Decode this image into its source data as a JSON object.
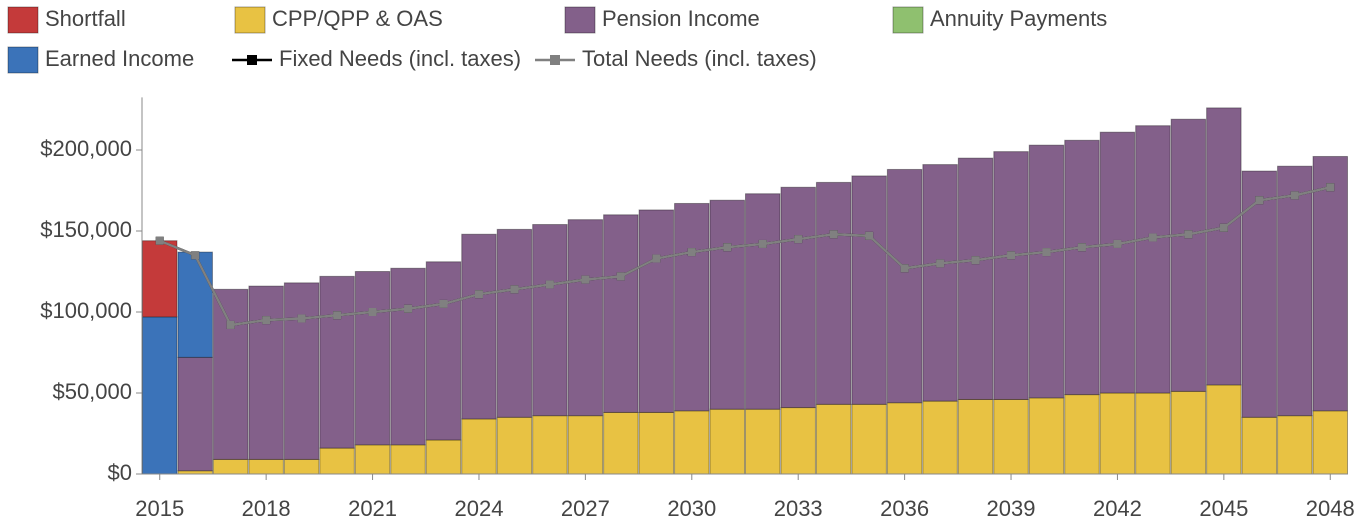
{
  "chart_data": {
    "type": "bar",
    "stacked": true,
    "x": [
      2015,
      2016,
      2017,
      2018,
      2019,
      2020,
      2021,
      2022,
      2023,
      2024,
      2025,
      2026,
      2027,
      2028,
      2029,
      2030,
      2031,
      2032,
      2033,
      2034,
      2035,
      2036,
      2037,
      2038,
      2039,
      2040,
      2041,
      2042,
      2043,
      2044,
      2045,
      2046,
      2047,
      2048
    ],
    "xlim": [
      2014.5,
      2048.5
    ],
    "xticks": [
      2015,
      2018,
      2021,
      2024,
      2027,
      2030,
      2033,
      2036,
      2039,
      2042,
      2045,
      2048
    ],
    "ylim": [
      0,
      230000
    ],
    "yticks": [
      {
        "value": 0,
        "label": "$0"
      },
      {
        "value": 50000,
        "label": "$50,000"
      },
      {
        "value": 100000,
        "label": "$100,000"
      },
      {
        "value": 150000,
        "label": "$150,000"
      },
      {
        "value": 200000,
        "label": "$200,000"
      }
    ],
    "grid": false,
    "series": [
      {
        "name": "CPP/QPP & OAS",
        "color": "#e8c243",
        "values": [
          0,
          2000,
          9000,
          9000,
          9000,
          16000,
          18000,
          18000,
          21000,
          34000,
          35000,
          36000,
          36000,
          38000,
          38000,
          39000,
          40000,
          40000,
          41000,
          43000,
          43000,
          44000,
          45000,
          46000,
          46000,
          47000,
          49000,
          50000,
          50000,
          51000,
          55000,
          35000,
          36000,
          39000
        ]
      },
      {
        "name": "Pension Income",
        "color": "#83608a",
        "values": [
          0,
          70000,
          105000,
          107000,
          109000,
          106000,
          107000,
          109000,
          110000,
          114000,
          116000,
          118000,
          121000,
          122000,
          125000,
          128000,
          129000,
          133000,
          136000,
          137000,
          141000,
          144000,
          146000,
          149000,
          153000,
          156000,
          157000,
          161000,
          165000,
          168000,
          171000,
          152000,
          154000,
          157000
        ]
      },
      {
        "name": "Annuity Payments",
        "color": "#8fc06f",
        "values": [
          0,
          0,
          0,
          0,
          0,
          0,
          0,
          0,
          0,
          0,
          0,
          0,
          0,
          0,
          0,
          0,
          0,
          0,
          0,
          0,
          0,
          0,
          0,
          0,
          0,
          0,
          0,
          0,
          0,
          0,
          0,
          0,
          0,
          0
        ]
      },
      {
        "name": "Earned Income",
        "color": "#3b73b9",
        "values": [
          97000,
          65000,
          0,
          0,
          0,
          0,
          0,
          0,
          0,
          0,
          0,
          0,
          0,
          0,
          0,
          0,
          0,
          0,
          0,
          0,
          0,
          0,
          0,
          0,
          0,
          0,
          0,
          0,
          0,
          0,
          0,
          0,
          0,
          0
        ]
      },
      {
        "name": "Shortfall",
        "color": "#c43a3a",
        "values": [
          47000,
          0,
          0,
          0,
          0,
          0,
          0,
          0,
          0,
          0,
          0,
          0,
          0,
          0,
          0,
          0,
          0,
          0,
          0,
          0,
          0,
          0,
          0,
          0,
          0,
          0,
          0,
          0,
          0,
          0,
          0,
          0,
          0,
          0
        ]
      },
      {
        "name": "Fixed Needs (incl. taxes)",
        "type": "line",
        "color": "#000000",
        "values": [
          144000,
          135000,
          92000,
          95000,
          96000,
          98000,
          100000,
          102000,
          105000,
          111000,
          114000,
          117000,
          120000,
          122000,
          133000,
          137000,
          140000,
          142000,
          145000,
          148000,
          147000,
          127000,
          130000,
          132000,
          135000,
          137000,
          140000,
          142000,
          146000,
          148000,
          152000,
          169000,
          172000,
          177000
        ]
      },
      {
        "name": "Total Needs (incl. taxes)",
        "type": "line",
        "color": "#808080",
        "values": [
          144000,
          135000,
          92000,
          95000,
          96000,
          98000,
          100000,
          102000,
          105000,
          111000,
          114000,
          117000,
          120000,
          122000,
          133000,
          137000,
          140000,
          142000,
          145000,
          148000,
          147000,
          127000,
          130000,
          132000,
          135000,
          137000,
          140000,
          142000,
          146000,
          148000,
          152000,
          169000,
          172000,
          177000
        ]
      }
    ]
  }
}
